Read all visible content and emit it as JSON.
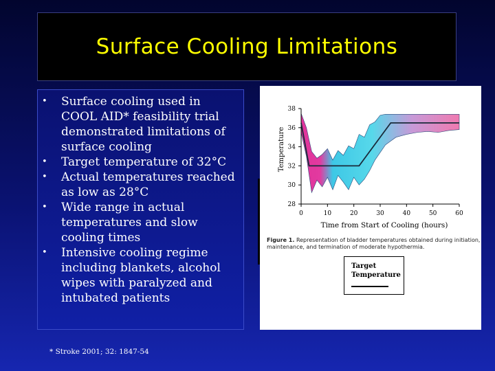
{
  "slide": {
    "title": "Surface Cooling Limitations",
    "bullets": [
      "Surface cooling used in COOL AID* feasibility trial demonstrated limitations of surface cooling",
      "Target temperature of 32°C",
      "Actual temperatures reached as low as 28°C",
      "Wide range in actual temperatures and slow cooling times",
      "Intensive cooling regime including blankets, alcohol wipes with paralyzed and intubated patients"
    ],
    "bullet_glyph": "•",
    "footnote": "* Stroke 2001; 32: 1847-54"
  },
  "figure": {
    "caption_bold": "Figure 1.",
    "caption_rest": "Representation of bladder temperatures obtained during initiation, maintenance, and termination of moderate hypothermia.",
    "legend_label": "Target Temperature"
  },
  "chart_data": {
    "type": "area",
    "xlabel": "Time from Start of Cooling (hours)",
    "ylabel": "Temperature",
    "xlim": [
      0,
      60
    ],
    "ylim": [
      28,
      38
    ],
    "x_ticks": [
      0,
      10,
      20,
      30,
      40,
      50,
      60
    ],
    "y_ticks": [
      28,
      30,
      32,
      34,
      36,
      38
    ],
    "series": [
      {
        "name": "Target Temperature",
        "x": [
          0,
          3,
          14,
          22,
          34,
          60
        ],
        "y": [
          36.5,
          32,
          32,
          32,
          36.5,
          36.5
        ]
      }
    ],
    "range_band": {
      "x": [
        0,
        2,
        4,
        6,
        8,
        10,
        12,
        14,
        16,
        18,
        20,
        22,
        24,
        26,
        28,
        30,
        32,
        34,
        36,
        40,
        44,
        48,
        52,
        56,
        60
      ],
      "upper": [
        37.5,
        36,
        33.5,
        32.8,
        33.2,
        33.8,
        32.6,
        33.6,
        33.1,
        34.1,
        33.8,
        35.3,
        35,
        36.3,
        36.6,
        37.3,
        37.4,
        37.4,
        37.4,
        37.4,
        37.4,
        37.4,
        37.4,
        37.4,
        37.4
      ],
      "lower": [
        35.5,
        33,
        29.2,
        30.5,
        29.8,
        30.8,
        29.5,
        31,
        30.3,
        29.5,
        30.8,
        30,
        30.6,
        31.5,
        32.6,
        33.4,
        34.2,
        34.6,
        35,
        35.3,
        35.5,
        35.6,
        35.5,
        35.7,
        35.8
      ]
    },
    "grid": false,
    "legend": "below"
  }
}
